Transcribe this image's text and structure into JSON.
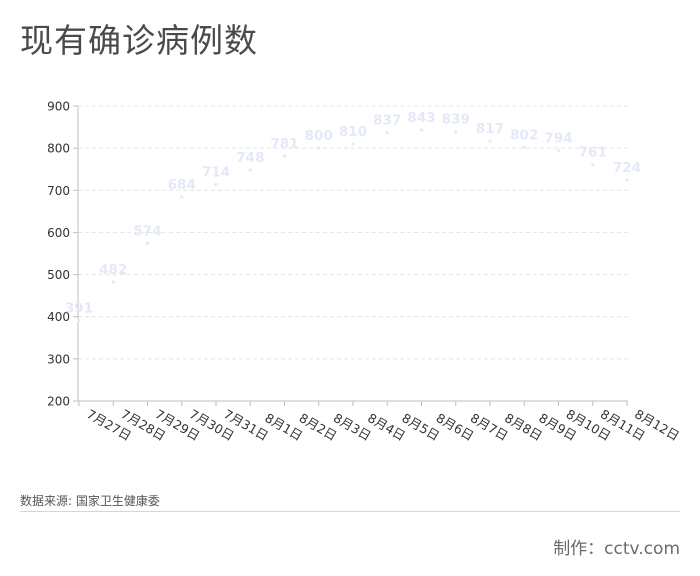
{
  "header": {
    "title": "现有确诊病例数"
  },
  "footer": {
    "source": "数据来源: 国家卫生健康委",
    "credit": "制作：cctv.com"
  },
  "colors": {
    "title": "#4a4a4a",
    "data_label": "#e3e9f7",
    "point": "#e6e9ef",
    "grid": "#e4e4e4",
    "axis": "#bfbfbf",
    "tick_text": "#333333"
  },
  "chart_data": {
    "type": "line",
    "categories": [
      "7月27日",
      "7月28日",
      "7月29日",
      "7月30日",
      "7月31日",
      "8月1日",
      "8月2日",
      "8月3日",
      "8月4日",
      "8月5日",
      "8月6日",
      "8月7日",
      "8月8日",
      "8月9日",
      "8月10日",
      "8月11日",
      "8月12日"
    ],
    "series": [
      {
        "values": [
          391,
          482,
          574,
          684,
          714,
          748,
          781,
          800,
          810,
          837,
          843,
          839,
          817,
          802,
          794,
          761,
          724
        ]
      }
    ],
    "ylim": [
      200,
      900
    ],
    "yticks": [
      200,
      300,
      400,
      500,
      600,
      700,
      800,
      900
    ],
    "grid": true,
    "data_labels": true,
    "xlabel": "",
    "ylabel": ""
  }
}
